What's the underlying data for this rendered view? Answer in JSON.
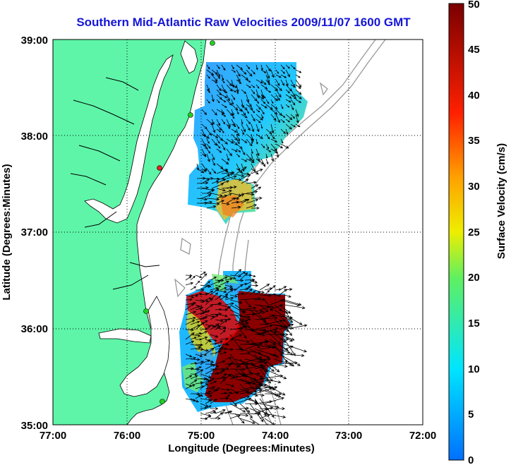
{
  "title": "Southern Mid-Atlantic Raw Velocities 2009/11/07 1600 GMT",
  "x_axis": {
    "label": "Longitude (Degrees:Minutes)",
    "ticks": [
      "77:00",
      "76:00",
      "75:00",
      "74:00",
      "73:00",
      "72:00"
    ]
  },
  "y_axis": {
    "label": "Latitude (Degrees:Minutes)",
    "ticks": [
      "39:00",
      "38:00",
      "37:00",
      "36:00",
      "35:00"
    ]
  },
  "colorbar": {
    "label": "Surface Velocity (cm/s)",
    "range": [
      0,
      50
    ],
    "ticks": [
      "0",
      "5",
      "10",
      "15",
      "20",
      "25",
      "30",
      "35",
      "40",
      "45",
      "50"
    ]
  },
  "colors": {
    "land": "#5ef5a8",
    "coastline": "#000000",
    "bathymetry": "#999999",
    "grid": "#000000",
    "title": "#1515d8"
  }
}
